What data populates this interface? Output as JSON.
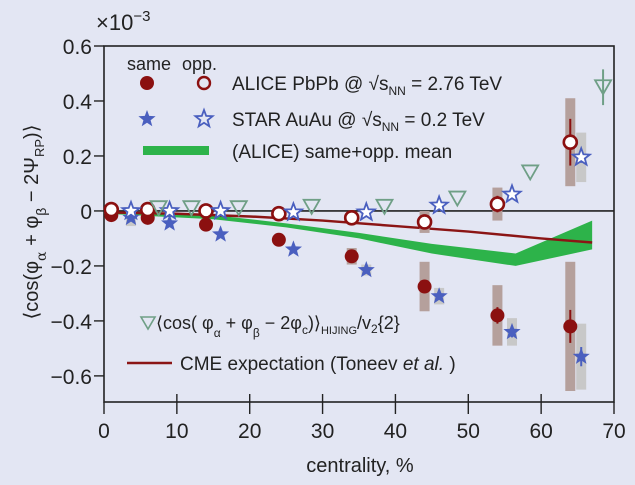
{
  "chart_data": {
    "type": "scatter",
    "title": "",
    "xlabel": "centrality, %",
    "ylabel": "⟨cos(φα + φβ − 2ΨRP)⟩",
    "ylabel_parts": {
      "open": "⟨cos(φ",
      "sub_a": "α",
      "plus": " + φ",
      "sub_b": "β",
      "minus": " − 2Ψ",
      "sub_rp": "RP",
      "close": ")⟩"
    },
    "y_multiplier": "×10",
    "y_multiplier_exp": "−3",
    "xlim": [
      0,
      70
    ],
    "ylim": [
      -0.695,
      0.6
    ],
    "xticks": [
      0,
      10,
      20,
      30,
      40,
      50,
      60,
      70
    ],
    "yticks": [
      -0.6,
      -0.4,
      -0.2,
      0,
      0.2,
      0.4,
      0.6
    ],
    "ytick_labels": [
      "−0.6",
      "−0.4",
      "−0.2",
      "0",
      "0.2",
      "0.4",
      "0.6"
    ],
    "grid": false,
    "zero_line": true,
    "legend": {
      "position": "top-left",
      "header_same": "same",
      "header_opp": "opp.",
      "entries": [
        {
          "name": "alice",
          "label_pre": "ALICE PbPb @ √s",
          "label_sub": "NN",
          "label_post": " = 2.76 TeV"
        },
        {
          "name": "star",
          "label_pre": "STAR AuAu @ √s",
          "label_sub": "NN",
          "label_post": " = 0.2 TeV"
        },
        {
          "name": "mean",
          "label": "(ALICE) same+opp. mean"
        }
      ],
      "hijing": {
        "pre": "⟨cos( φ",
        "sa": "α",
        "mid1": " + φ",
        "sb": "β",
        "mid2": " − 2φ",
        "sc": "c",
        "close": ")⟩",
        "sub": "HIJING",
        "post": "/v",
        "v_sub": "2",
        "tail": "{2}"
      },
      "cme": {
        "label": "CME expectation (Toneev ",
        "italic": "et al.",
        "end": " )"
      }
    },
    "colors": {
      "alice": "#8b1010",
      "star": "#4a5fbf",
      "mean": "#2db34a",
      "hijing": "#6f9f86",
      "cme": "#8b1515",
      "alice_sys": "#b5a09c",
      "star_sys": "#c8c8c8"
    },
    "series": [
      {
        "name": "ALICE same",
        "marker": "filled-circle",
        "x": [
          1,
          6,
          14,
          24,
          34,
          44,
          54,
          64
        ],
        "y": [
          -0.015,
          -0.025,
          -0.05,
          -0.105,
          -0.165,
          -0.275,
          -0.38,
          -0.42
        ],
        "stat_err": [
          0.005,
          0.005,
          0.005,
          0.01,
          0.01,
          0.02,
          0.03,
          0.06
        ],
        "sys_err": [
          0.005,
          0.005,
          0.01,
          0.01,
          0.03,
          0.09,
          0.11,
          0.235
        ]
      },
      {
        "name": "ALICE opp.",
        "marker": "open-circle",
        "x": [
          1,
          6,
          14,
          24,
          34,
          44,
          54,
          64
        ],
        "y": [
          0.005,
          0.005,
          0.0,
          -0.01,
          -0.025,
          -0.04,
          0.025,
          0.25
        ],
        "stat_err": [
          0.005,
          0.005,
          0.005,
          0.005,
          0.01,
          0.01,
          0.03,
          0.085
        ],
        "sys_err": [
          0.005,
          0.005,
          0.005,
          0.01,
          0.02,
          0.04,
          0.06,
          0.16
        ]
      },
      {
        "name": "STAR same",
        "marker": "filled-star",
        "x": [
          3.7,
          9,
          16,
          26,
          36,
          46,
          56,
          65.5
        ],
        "y": [
          -0.025,
          -0.045,
          -0.085,
          -0.14,
          -0.215,
          -0.31,
          -0.44,
          -0.53
        ],
        "stat_err": [
          0.005,
          0.005,
          0.005,
          0.005,
          0.005,
          0.01,
          0.02,
          0.035
        ],
        "sys_err": [
          0.03,
          0.01,
          0.01,
          0.01,
          0.02,
          0.03,
          0.05,
          0.12
        ]
      },
      {
        "name": "STAR opp.",
        "marker": "open-star",
        "x": [
          3.7,
          9,
          16,
          26,
          36,
          46,
          56,
          65.5
        ],
        "y": [
          0.0,
          0.0,
          0.0,
          -0.005,
          -0.005,
          0.02,
          0.06,
          0.195
        ],
        "stat_err": [
          0.005,
          0.005,
          0.005,
          0.005,
          0.005,
          0.01,
          0.01,
          0.02
        ],
        "sys_err": [
          0.005,
          0.005,
          0.005,
          0.005,
          0.005,
          0.01,
          0.01,
          0.09
        ]
      },
      {
        "name": "HIJING",
        "marker": "open-triangle-down",
        "x": [
          7.5,
          12,
          18.5,
          28.5,
          38.5,
          48.5,
          58.5,
          68.5
        ],
        "y": [
          0.01,
          0.01,
          0.01,
          0.015,
          0.015,
          0.045,
          0.14,
          0.45
        ],
        "stat_err": [
          0,
          0,
          0,
          0,
          0,
          0,
          0,
          0.065
        ]
      }
    ],
    "mean_band": {
      "name": "(ALICE) same+opp. mean",
      "x": [
        0,
        15,
        25,
        35,
        45,
        56.5,
        67
      ],
      "y_high": [
        0.0,
        -0.015,
        -0.045,
        -0.08,
        -0.12,
        -0.155,
        -0.035
      ],
      "y_low": [
        -0.01,
        -0.03,
        -0.06,
        -0.1,
        -0.155,
        -0.2,
        -0.14
      ]
    },
    "cme_line": {
      "name": "CME expectation (Toneev et al.)",
      "x": [
        0,
        10,
        20,
        30,
        40,
        50,
        60,
        67
      ],
      "y": [
        -0.005,
        -0.01,
        -0.02,
        -0.035,
        -0.055,
        -0.075,
        -0.1,
        -0.115
      ]
    }
  }
}
